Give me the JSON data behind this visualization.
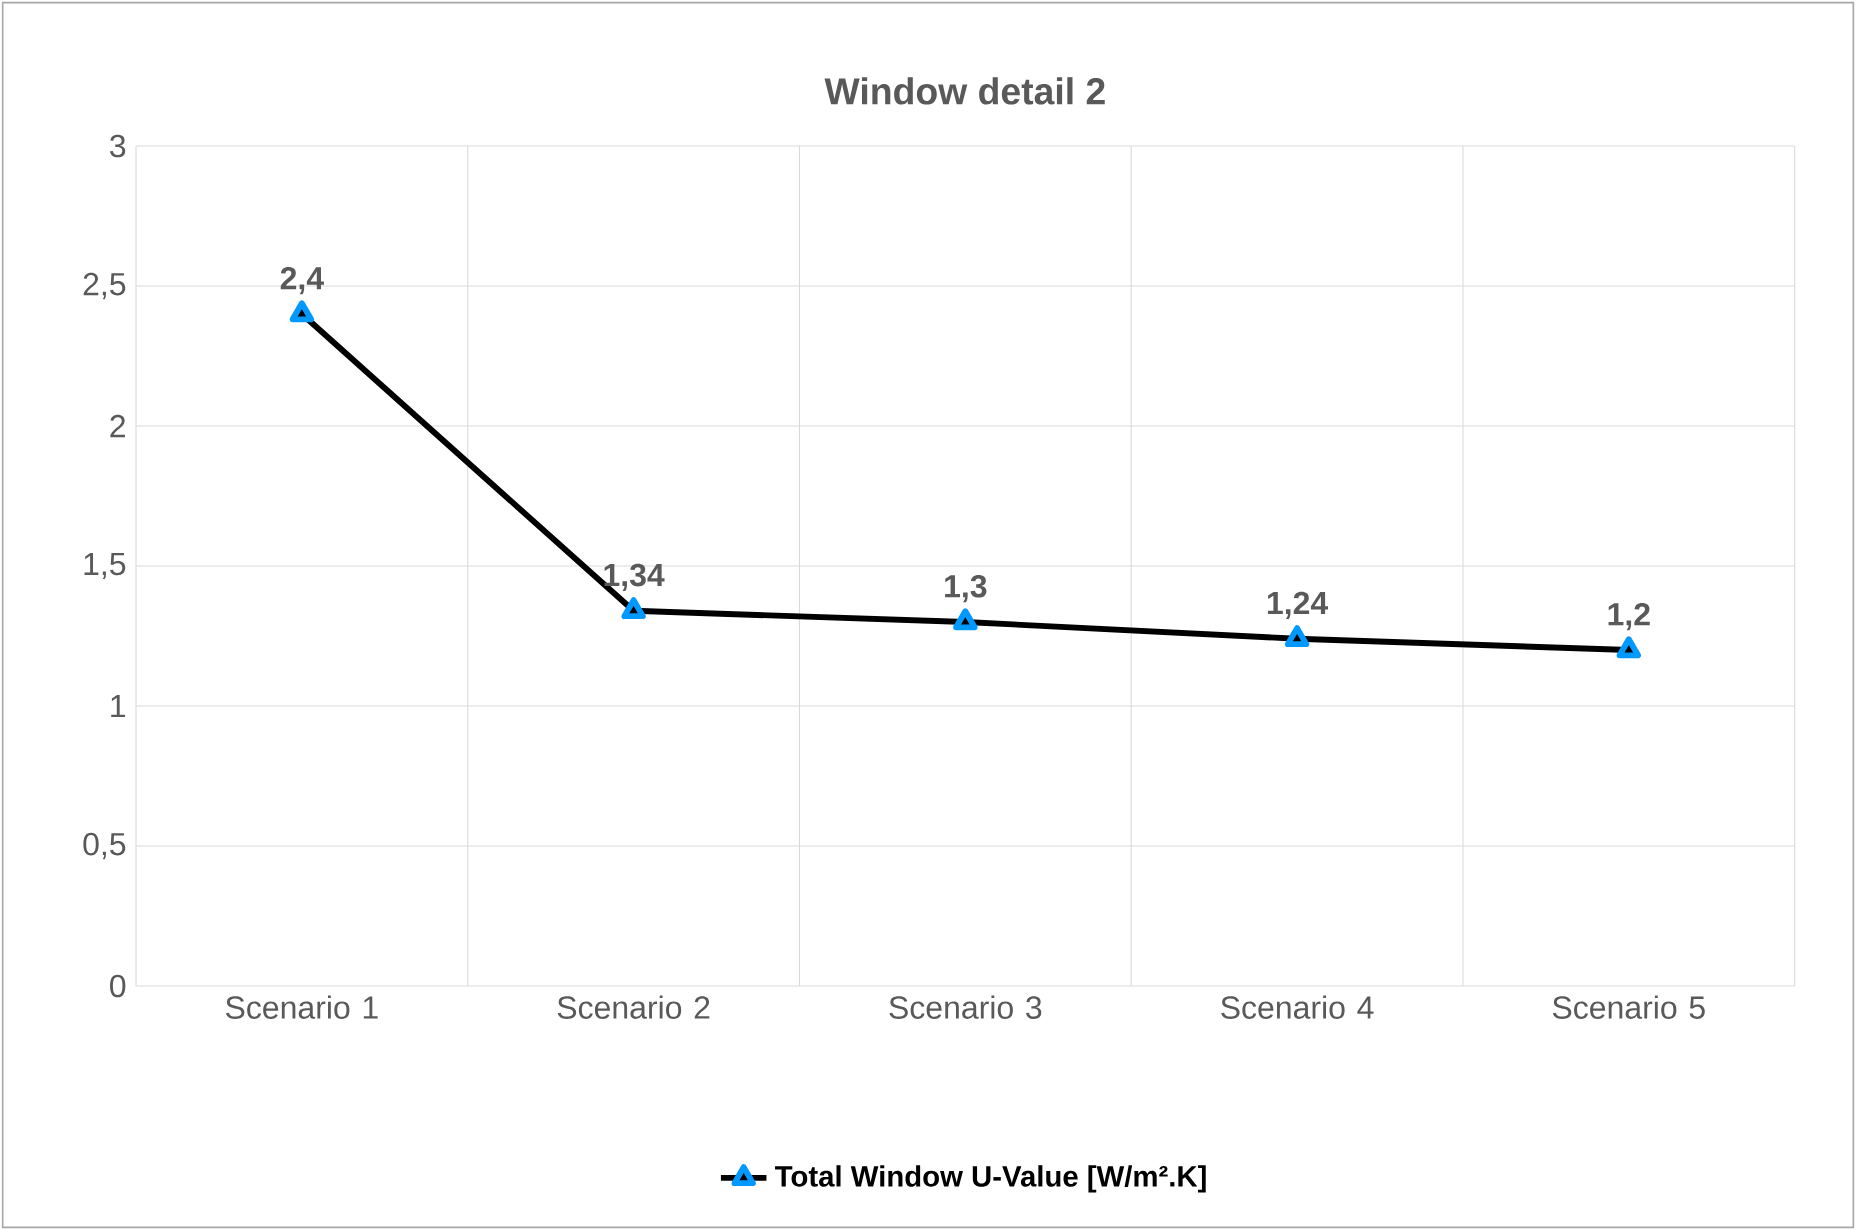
{
  "chart_data": {
    "type": "line",
    "title": "Window detail 2",
    "categories": [
      "Scenario 1",
      "Scenario 2",
      "Scenario 3",
      "Scenario 4",
      "Scenario 5"
    ],
    "series": [
      {
        "name": "Total Window U-Value [W/m².K]",
        "color": "#000000",
        "values": [
          2.4,
          1.34,
          1.3,
          1.24,
          1.2
        ],
        "value_labels": [
          "2,4",
          "1,34",
          "1,3",
          "1,24",
          "1,2"
        ]
      }
    ],
    "ylim": [
      0,
      3
    ],
    "yticks": [
      0,
      {
        "value": 0.5,
        "label": "0,5"
      },
      1,
      {
        "value": 1.5,
        "label": "1,5"
      },
      2,
      {
        "value": 2.5,
        "label": "2,5"
      },
      3
    ],
    "grid": true,
    "legend": "bottom",
    "marker": "triangle",
    "line_style": "solid"
  }
}
